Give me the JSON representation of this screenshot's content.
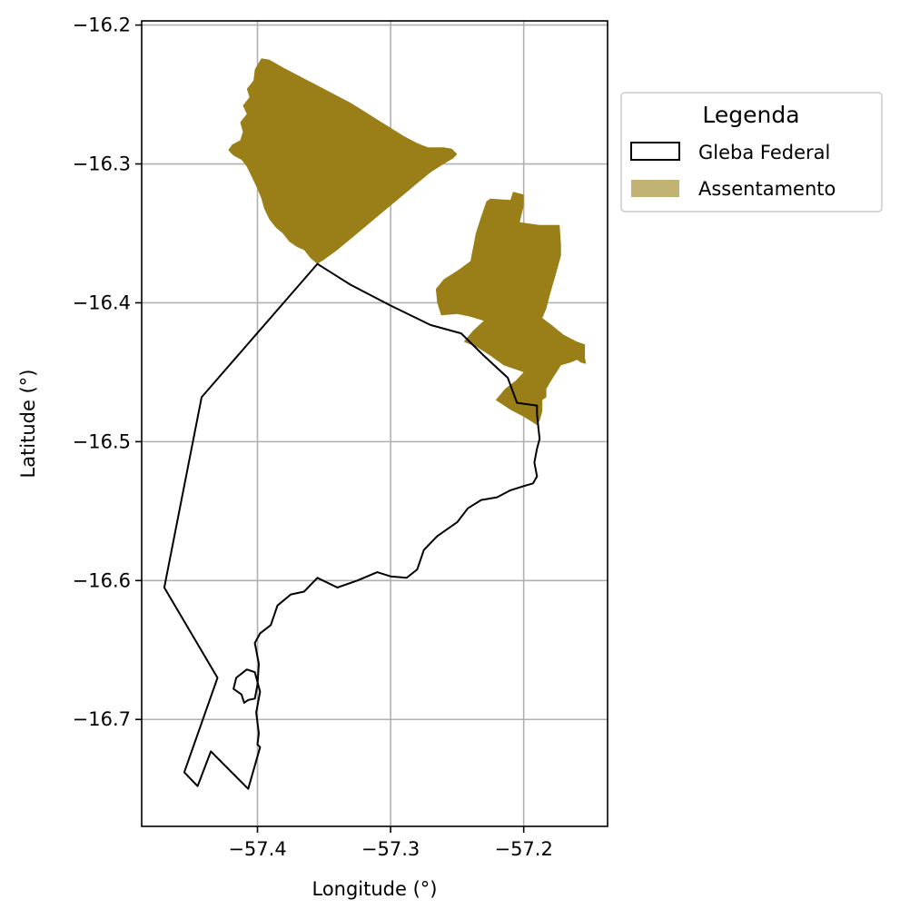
{
  "chart_data": {
    "type": "map",
    "xlabel": "Longitude (°)",
    "ylabel": "Latitude (°)",
    "xlim": [
      -57.487,
      -57.137
    ],
    "ylim": [
      -16.777,
      -16.197
    ],
    "grid": true,
    "xticks": [
      {
        "value": -57.4,
        "label": "−57.4"
      },
      {
        "value": -57.3,
        "label": "−57.3"
      },
      {
        "value": -57.2,
        "label": "−57.2"
      }
    ],
    "yticks": [
      {
        "value": -16.2,
        "label": "−16.2"
      },
      {
        "value": -16.3,
        "label": "−16.3"
      },
      {
        "value": -16.4,
        "label": "−16.4"
      },
      {
        "value": -16.5,
        "label": "−16.5"
      },
      {
        "value": -16.6,
        "label": "−16.6"
      },
      {
        "value": -16.7,
        "label": "−16.7"
      }
    ],
    "legend": {
      "title": "Legenda",
      "placement": "outside-right-top",
      "entries": [
        {
          "label": "Gleba Federal",
          "style": "outline",
          "edge": "#000000",
          "fill": "#ffffff"
        },
        {
          "label": "Assentamento",
          "style": "fill",
          "fill": "#9a7e17",
          "opacity": 0.6
        }
      ]
    },
    "layers": [
      {
        "name": "Assentamento",
        "fill": "#9a7e17",
        "polygons": [
          [
            [
              -57.397,
              -16.224
            ],
            [
              -57.391,
              -16.225
            ],
            [
              -57.38,
              -16.231
            ],
            [
              -57.37,
              -16.236
            ],
            [
              -57.36,
              -16.241
            ],
            [
              -57.35,
              -16.246
            ],
            [
              -57.34,
              -16.251
            ],
            [
              -57.33,
              -16.256
            ],
            [
              -57.32,
              -16.262
            ],
            [
              -57.31,
              -16.268
            ],
            [
              -57.3,
              -16.274
            ],
            [
              -57.29,
              -16.28
            ],
            [
              -57.28,
              -16.285
            ],
            [
              -57.272,
              -16.288
            ],
            [
              -57.26,
              -16.288
            ],
            [
              -57.254,
              -16.289
            ],
            [
              -57.25,
              -16.293
            ],
            [
              -57.253,
              -16.296
            ],
            [
              -57.26,
              -16.3
            ],
            [
              -57.27,
              -16.306
            ],
            [
              -57.28,
              -16.314
            ],
            [
              -57.29,
              -16.322
            ],
            [
              -57.3,
              -16.33
            ],
            [
              -57.31,
              -16.338
            ],
            [
              -57.32,
              -16.346
            ],
            [
              -57.33,
              -16.354
            ],
            [
              -57.34,
              -16.362
            ],
            [
              -57.35,
              -16.369
            ],
            [
              -57.355,
              -16.372
            ],
            [
              -57.36,
              -16.368
            ],
            [
              -57.365,
              -16.362
            ],
            [
              -57.37,
              -16.36
            ],
            [
              -57.376,
              -16.356
            ],
            [
              -57.381,
              -16.35
            ],
            [
              -57.386,
              -16.346
            ],
            [
              -57.391,
              -16.34
            ],
            [
              -57.395,
              -16.332
            ],
            [
              -57.397,
              -16.325
            ],
            [
              -57.4,
              -16.318
            ],
            [
              -57.404,
              -16.31
            ],
            [
              -57.408,
              -16.302
            ],
            [
              -57.412,
              -16.297
            ],
            [
              -57.418,
              -16.294
            ],
            [
              -57.422,
              -16.29
            ],
            [
              -57.419,
              -16.286
            ],
            [
              -57.413,
              -16.283
            ],
            [
              -57.411,
              -16.277
            ],
            [
              -57.413,
              -16.27
            ],
            [
              -57.408,
              -16.264
            ],
            [
              -57.411,
              -16.258
            ],
            [
              -57.406,
              -16.252
            ],
            [
              -57.408,
              -16.246
            ],
            [
              -57.403,
              -16.24
            ],
            [
              -57.402,
              -16.232
            ],
            [
              -57.399,
              -16.227
            ]
          ],
          [
            [
              -57.225,
              -16.325
            ],
            [
              -57.21,
              -16.326
            ],
            [
              -57.208,
              -16.32
            ],
            [
              -57.2,
              -16.322
            ],
            [
              -57.2,
              -16.33
            ],
            [
              -57.203,
              -16.342
            ],
            [
              -57.188,
              -16.344
            ],
            [
              -57.173,
              -16.344
            ],
            [
              -57.172,
              -16.358
            ],
            [
              -57.172,
              -16.366
            ],
            [
              -57.176,
              -16.38
            ],
            [
              -57.18,
              -16.393
            ],
            [
              -57.183,
              -16.404
            ],
            [
              -57.186,
              -16.411
            ],
            [
              -57.179,
              -16.416
            ],
            [
              -57.17,
              -16.423
            ],
            [
              -57.16,
              -16.428
            ],
            [
              -57.154,
              -16.43
            ],
            [
              -57.154,
              -16.44
            ],
            [
              -57.153,
              -16.444
            ],
            [
              -57.157,
              -16.443
            ],
            [
              -57.16,
              -16.441
            ],
            [
              -57.165,
              -16.443
            ],
            [
              -57.172,
              -16.445
            ],
            [
              -57.18,
              -16.457
            ],
            [
              -57.183,
              -16.462
            ],
            [
              -57.183,
              -16.468
            ],
            [
              -57.186,
              -16.47
            ],
            [
              -57.186,
              -16.478
            ],
            [
              -57.188,
              -16.485
            ],
            [
              -57.19,
              -16.488
            ],
            [
              -57.2,
              -16.482
            ],
            [
              -57.21,
              -16.477
            ],
            [
              -57.221,
              -16.47
            ],
            [
              -57.214,
              -16.462
            ],
            [
              -57.206,
              -16.456
            ],
            [
              -57.2,
              -16.45
            ],
            [
              -57.215,
              -16.445
            ],
            [
              -57.225,
              -16.438
            ],
            [
              -57.235,
              -16.432
            ],
            [
              -57.245,
              -16.428
            ],
            [
              -57.238,
              -16.42
            ],
            [
              -57.23,
              -16.413
            ],
            [
              -57.24,
              -16.41
            ],
            [
              -57.25,
              -16.408
            ],
            [
              -57.262,
              -16.409
            ],
            [
              -57.265,
              -16.4
            ],
            [
              -57.266,
              -16.39
            ],
            [
              -57.26,
              -16.383
            ],
            [
              -57.25,
              -16.377
            ],
            [
              -57.24,
              -16.37
            ],
            [
              -57.238,
              -16.36
            ],
            [
              -57.236,
              -16.35
            ],
            [
              -57.232,
              -16.338
            ],
            [
              -57.228,
              -16.327
            ]
          ]
        ]
      },
      {
        "name": "Gleba Federal",
        "edge": "#000000",
        "polygons": [
          [
            [
              -57.355,
              -16.372
            ],
            [
              -57.35,
              -16.375
            ],
            [
              -57.33,
              -16.387
            ],
            [
              -57.3,
              -16.402
            ],
            [
              -57.27,
              -16.416
            ],
            [
              -57.247,
              -16.422
            ],
            [
              -57.23,
              -16.438
            ],
            [
              -57.212,
              -16.454
            ],
            [
              -57.205,
              -16.472
            ],
            [
              -57.19,
              -16.474
            ],
            [
              -57.19,
              -16.48
            ],
            [
              -57.189,
              -16.49
            ],
            [
              -57.188,
              -16.498
            ],
            [
              -57.19,
              -16.505
            ],
            [
              -57.192,
              -16.515
            ],
            [
              -57.19,
              -16.525
            ],
            [
              -57.193,
              -16.53
            ],
            [
              -57.2,
              -16.532
            ],
            [
              -57.21,
              -16.535
            ],
            [
              -57.22,
              -16.54
            ],
            [
              -57.232,
              -16.542
            ],
            [
              -57.242,
              -16.548
            ],
            [
              -57.25,
              -16.558
            ],
            [
              -57.265,
              -16.568
            ],
            [
              -57.275,
              -16.578
            ],
            [
              -57.28,
              -16.592
            ],
            [
              -57.288,
              -16.598
            ],
            [
              -57.3,
              -16.597
            ],
            [
              -57.31,
              -16.594
            ],
            [
              -57.325,
              -16.6
            ],
            [
              -57.34,
              -16.605
            ],
            [
              -57.355,
              -16.598
            ],
            [
              -57.365,
              -16.608
            ],
            [
              -57.375,
              -16.61
            ],
            [
              -57.385,
              -16.618
            ],
            [
              -57.39,
              -16.632
            ],
            [
              -57.398,
              -16.638
            ],
            [
              -57.402,
              -16.645
            ],
            [
              -57.399,
              -16.66
            ],
            [
              -57.4,
              -16.675
            ],
            [
              -57.402,
              -16.685
            ],
            [
              -57.407,
              -16.686
            ],
            [
              -57.41,
              -16.688
            ],
            [
              -57.412,
              -16.682
            ],
            [
              -57.418,
              -16.678
            ],
            [
              -57.416,
              -16.67
            ],
            [
              -57.408,
              -16.664
            ],
            [
              -57.402,
              -16.666
            ],
            [
              -57.398,
              -16.68
            ],
            [
              -57.401,
              -16.695
            ],
            [
              -57.399,
              -16.71
            ],
            [
              -57.4,
              -16.718
            ],
            [
              -57.398,
              -16.72
            ],
            [
              -57.407,
              -16.75
            ],
            [
              -57.435,
              -16.723
            ],
            [
              -57.445,
              -16.748
            ],
            [
              -57.455,
              -16.738
            ],
            [
              -57.43,
              -16.67
            ],
            [
              -57.47,
              -16.605
            ],
            [
              -57.442,
              -16.468
            ],
            [
              -57.355,
              -16.372
            ]
          ]
        ]
      }
    ]
  }
}
